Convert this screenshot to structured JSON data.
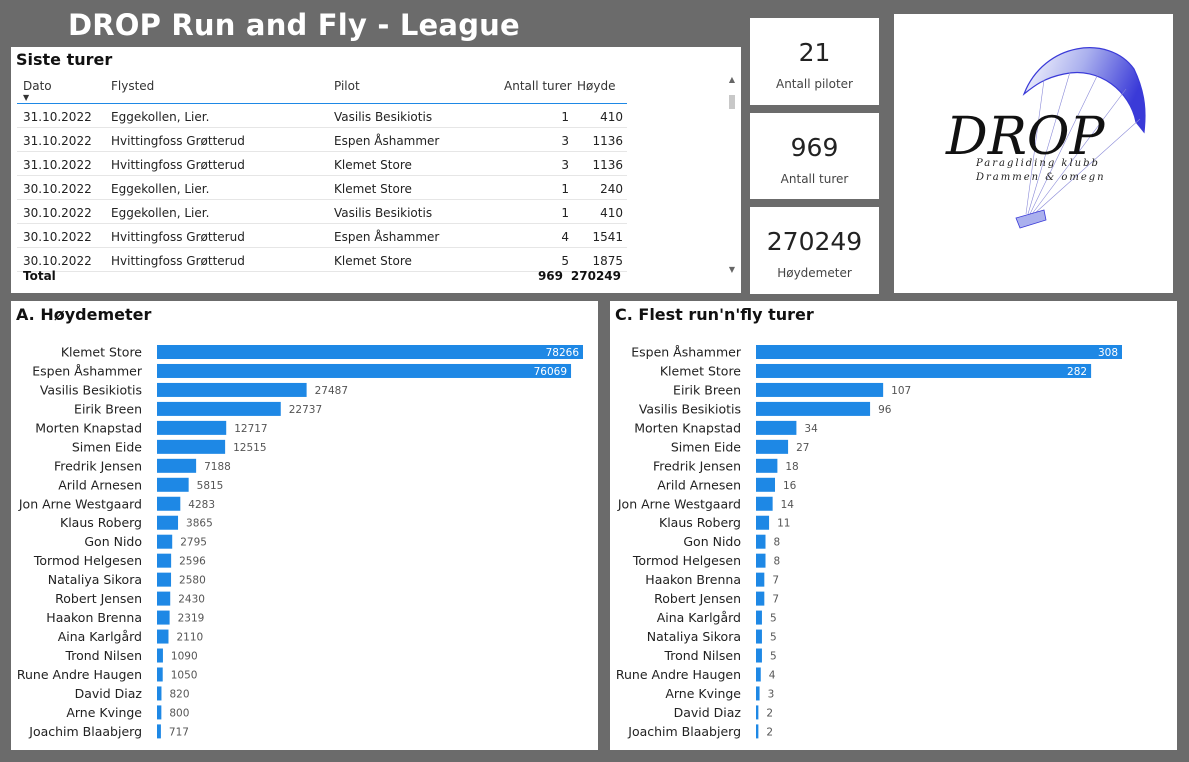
{
  "page": {
    "title": "DROP Run and Fly - League"
  },
  "recent": {
    "title": "Siste turer",
    "columns": [
      "Dato",
      "Flysted",
      "Pilot",
      "Antall turer",
      "Høyde"
    ],
    "rows": [
      [
        "31.10.2022",
        "Eggekollen, Lier.",
        "Vasilis Besikiotis",
        "1",
        "410"
      ],
      [
        "31.10.2022",
        "Hvittingfoss Grøtterud",
        "Espen Åshammer",
        "3",
        "1136"
      ],
      [
        "31.10.2022",
        "Hvittingfoss Grøtterud",
        "Klemet Store",
        "3",
        "1136"
      ],
      [
        "30.10.2022",
        "Eggekollen, Lier.",
        "Klemet Store",
        "1",
        "240"
      ],
      [
        "30.10.2022",
        "Eggekollen, Lier.",
        "Vasilis Besikiotis",
        "1",
        "410"
      ],
      [
        "30.10.2022",
        "Hvittingfoss Grøtterud",
        "Espen Åshammer",
        "4",
        "1541"
      ],
      [
        "30.10.2022",
        "Hvittingfoss Grøtterud",
        "Klemet Store",
        "5",
        "1875"
      ]
    ],
    "total": {
      "label": "Total",
      "turer": "969",
      "hoyde": "270249"
    }
  },
  "cards": {
    "pilots": {
      "value": "21",
      "label": "Antall piloter"
    },
    "turer": {
      "value": "969",
      "label": "Antall turer"
    },
    "hoyde": {
      "value": "270249",
      "label": "Høydemeter"
    }
  },
  "logo": {
    "text": "DROP",
    "line1": "Paragliding klubb",
    "line2": "Drammen & omegn"
  },
  "chart_data": [
    {
      "type": "bar",
      "orientation": "horizontal",
      "title": "A. Høydemeter",
      "xlabel": "",
      "ylabel": "",
      "xlim": [
        0,
        78266
      ],
      "categories": [
        "Klemet Store",
        "Espen Åshammer",
        "Vasilis Besikiotis",
        "Eirik Breen",
        "Morten Knapstad",
        "Simen Eide",
        "Fredrik Jensen",
        "Arild Arnesen",
        "Jon Arne Westgaard",
        "Klaus Roberg",
        "Gon Nido",
        "Tormod Helgesen",
        "Nataliya Sikora",
        "Robert Jensen",
        "Haakon Brenna",
        "Aina Karlgård",
        "Trond Nilsen",
        "Rune Andre Haugen",
        "David Diaz",
        "Arne Kvinge",
        "Joachim Blaabjerg"
      ],
      "values": [
        78266,
        76069,
        27487,
        22737,
        12717,
        12515,
        7188,
        5815,
        4283,
        3865,
        2795,
        2596,
        2580,
        2430,
        2319,
        2110,
        1090,
        1050,
        820,
        800,
        717
      ],
      "color": "#1e88e5"
    },
    {
      "type": "bar",
      "orientation": "horizontal",
      "title": "C. Flest run'n'fly turer",
      "xlabel": "",
      "ylabel": "",
      "xlim": [
        0,
        308
      ],
      "categories": [
        "Espen Åshammer",
        "Klemet Store",
        "Eirik Breen",
        "Vasilis Besikiotis",
        "Morten Knapstad",
        "Simen Eide",
        "Fredrik Jensen",
        "Arild Arnesen",
        "Jon Arne Westgaard",
        "Klaus Roberg",
        "Gon Nido",
        "Tormod Helgesen",
        "Haakon Brenna",
        "Robert Jensen",
        "Aina Karlgård",
        "Nataliya Sikora",
        "Trond Nilsen",
        "Rune Andre Haugen",
        "Arne Kvinge",
        "David Diaz",
        "Joachim Blaabjerg"
      ],
      "values": [
        308,
        282,
        107,
        96,
        34,
        27,
        18,
        16,
        14,
        11,
        8,
        8,
        7,
        7,
        5,
        5,
        5,
        4,
        3,
        2,
        2
      ],
      "color": "#1e88e5"
    }
  ]
}
